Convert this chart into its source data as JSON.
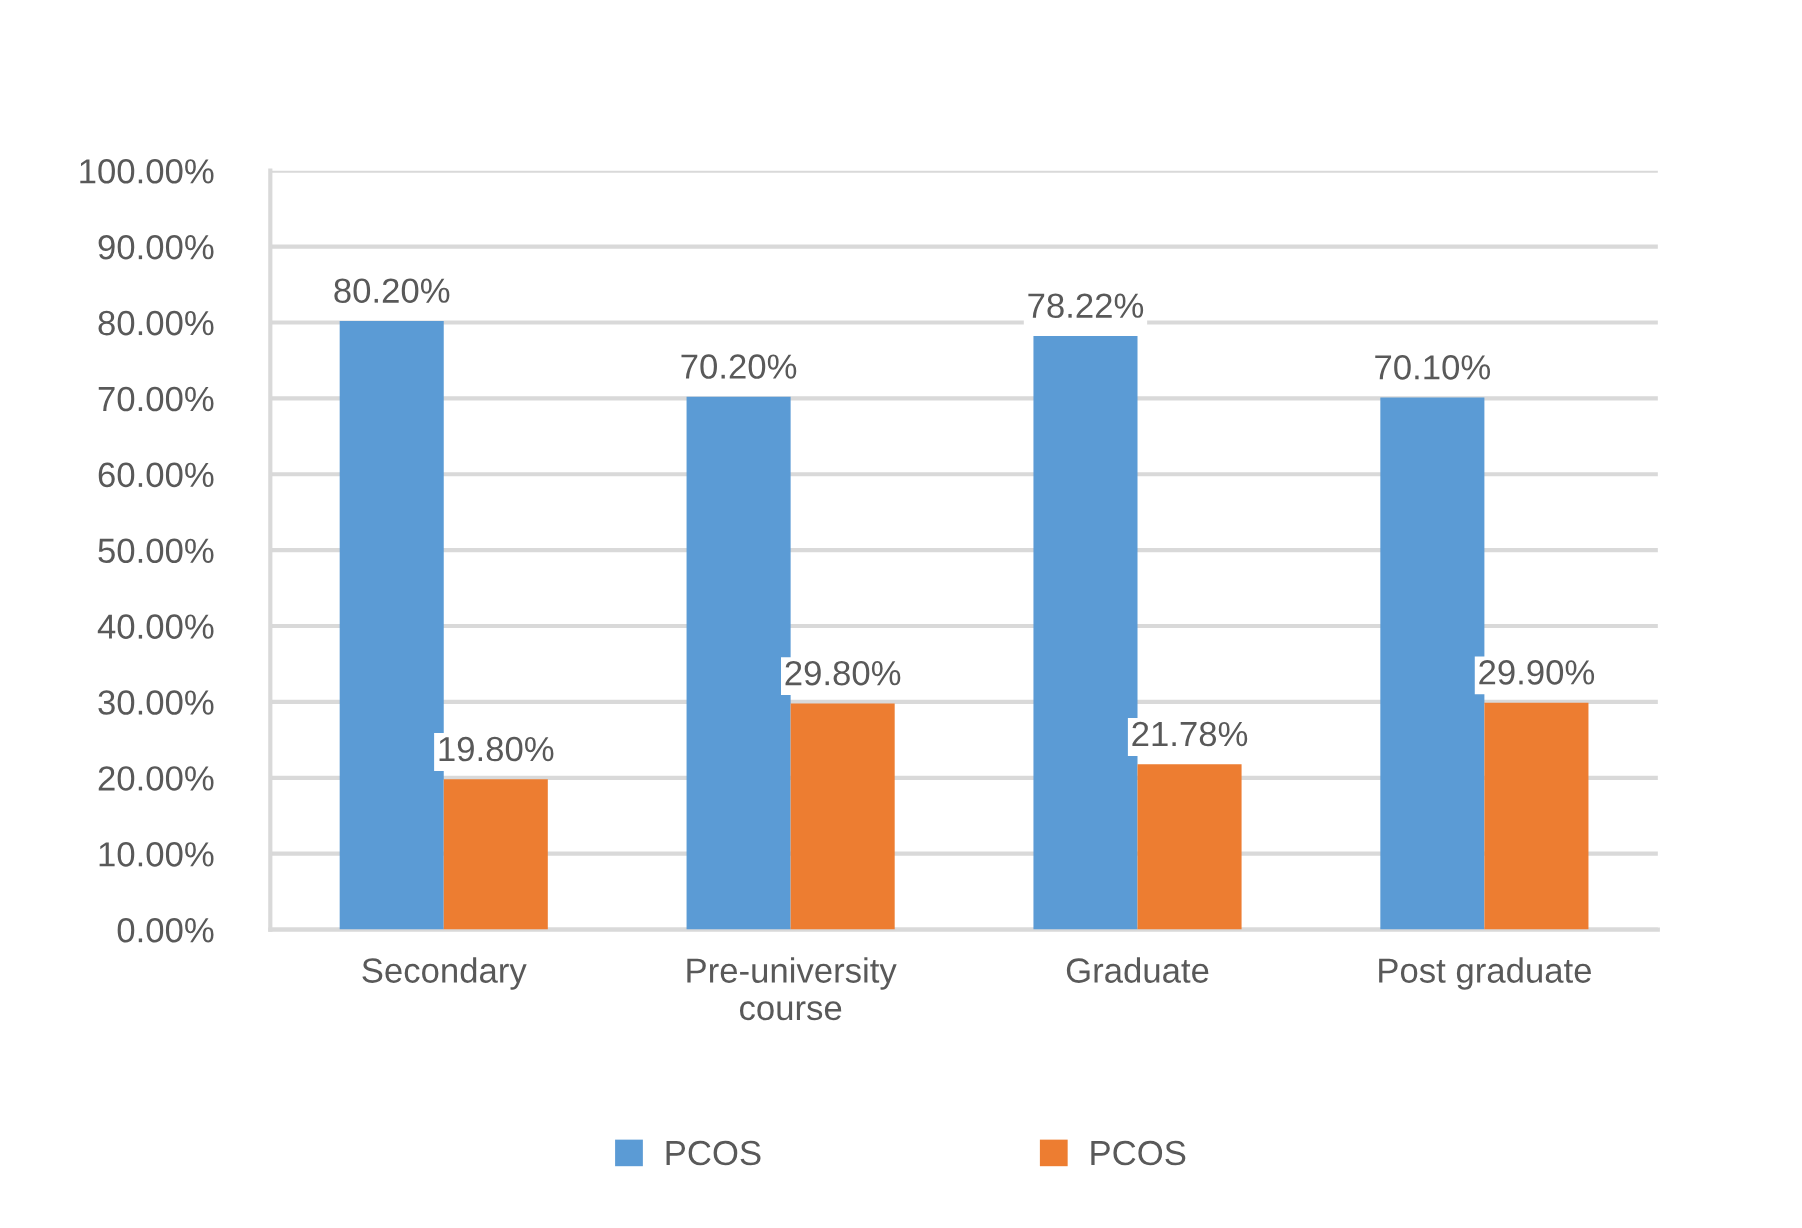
{
  "chart_data": {
    "type": "bar",
    "categories": [
      "Secondary",
      "Pre-university course",
      "Graduate",
      "Post graduate"
    ],
    "series": [
      {
        "name": "PCOS",
        "color": "#5b9bd5",
        "values": [
          80.2,
          70.2,
          78.22,
          70.1
        ],
        "value_labels": [
          "80.20%",
          "70.20%",
          "78.22%",
          "70.10%"
        ]
      },
      {
        "name": "PCOS",
        "color": "#ed7d31",
        "values": [
          19.8,
          29.8,
          21.78,
          29.9
        ],
        "value_labels": [
          "19.80%",
          "29.80%",
          "21.78%",
          "29.90%"
        ]
      }
    ],
    "ylim": [
      0,
      100
    ],
    "yticks": [
      {
        "value": 0,
        "label": "0.00%"
      },
      {
        "value": 10,
        "label": "10.00%"
      },
      {
        "value": 20,
        "label": "20.00%"
      },
      {
        "value": 30,
        "label": "30.00%"
      },
      {
        "value": 40,
        "label": "40.00%"
      },
      {
        "value": 50,
        "label": "50.00%"
      },
      {
        "value": 60,
        "label": "60.00%"
      },
      {
        "value": 70,
        "label": "70.00%"
      },
      {
        "value": 80,
        "label": "80.00%"
      },
      {
        "value": 90,
        "label": "90.00%"
      },
      {
        "value": 100,
        "label": "100.00%"
      }
    ],
    "grid": "y",
    "legend": "bottom"
  }
}
